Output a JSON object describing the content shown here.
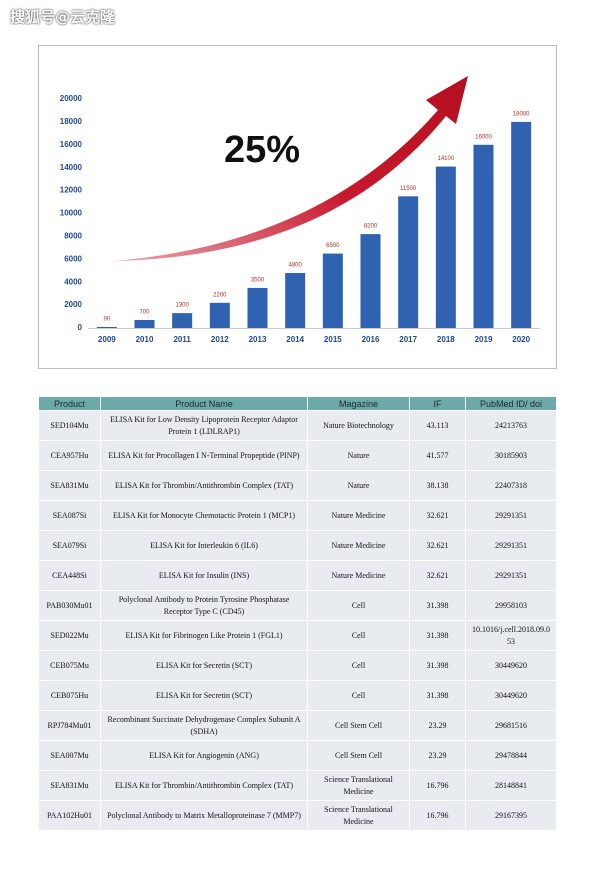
{
  "watermark": "搜狐号@云克隆",
  "chart_data": {
    "type": "bar",
    "annotation": "25%",
    "categories": [
      "2009",
      "2010",
      "2011",
      "2012",
      "2013",
      "2014",
      "2015",
      "2016",
      "2017",
      "2018",
      "2019",
      "2020"
    ],
    "values": [
      90,
      700,
      1300,
      2200,
      3500,
      4800,
      6500,
      8200,
      11500,
      14100,
      16000,
      18000
    ],
    "color": "#2f62b0",
    "label_color": "#b03024",
    "ylim": [
      0,
      20000
    ],
    "yticks": [
      0,
      2000,
      4000,
      6000,
      8000,
      10000,
      12000,
      14000,
      16000,
      18000,
      20000
    ]
  },
  "table": {
    "header": [
      "Product",
      "Product Name",
      "Magazine",
      "IF",
      "PubMed ID/ doi"
    ],
    "rows": [
      [
        "SED104Mu",
        "ELISA Kit for Low Density Lipoprotein Receptor Adaptor Protein 1 (LDLRAP1)",
        "Nature Biotechnology",
        43.113,
        "24213763"
      ],
      [
        "CEA957Hu",
        "ELISA Kit for Procollagen I N-Terminal Propeptide (PINP)",
        "Nature",
        41.577,
        "30185903"
      ],
      [
        "SEA831Mu",
        "ELISA Kit for Thrombin/Antithrombin Complex (TAT)",
        "Nature",
        38.138,
        "22407318"
      ],
      [
        "SEA087Si",
        "ELISA Kit for Monocyte Chemotactic Protein 1 (MCP1)",
        "Nature Medicine",
        32.621,
        "29291351"
      ],
      [
        "SEA079Si",
        "ELISA Kit for Interleukin 6 (IL6)",
        "Nature Medicine",
        32.621,
        "29291351"
      ],
      [
        "CEA448Si",
        "ELISA Kit for Insulin (INS)",
        "Nature Medicine",
        32.621,
        "29291351"
      ],
      [
        "PAB030Mu01",
        "Polyclonal Antibody to Protein Tyrosine Phosphatase Receptor Type C (CD45)",
        "Cell",
        31.398,
        "29958103"
      ],
      [
        "SED022Mu",
        "ELISA Kit for Fibrinogen Like Protein 1 (FGL1)",
        "Cell",
        31.398,
        "10.1016/j.cell.2018.09.053"
      ],
      [
        "CEB075Mu",
        "ELISA Kit for Secretin (SCT)",
        "Cell",
        31.398,
        "30449620"
      ],
      [
        "CEB075Hu",
        "ELISA Kit for Secretin (SCT)",
        "Cell",
        31.398,
        "30449620"
      ],
      [
        "RPJ784Mu01",
        "Recombinant Succinate Dehydrogenase Complex Subunit A (SDHA)",
        "Cell Stem Cell",
        23.29,
        "29681516"
      ],
      [
        "SEA007Mu",
        "ELISA Kit for Angiogenin (ANG)",
        "Cell Stem Cell",
        23.29,
        "29478844"
      ],
      [
        "SEA831Mu",
        "ELISA Kit for Thrombin/Antithrombin Complex (TAT)",
        "Science Translational Medicine",
        16.796,
        "28148841"
      ],
      [
        "PAA102Hu01",
        "Polyclonal Antibody to Matrix Metalloproteinase 7 (MMP7)",
        "Science Translational Medicine",
        16.796,
        "29167395"
      ]
    ]
  }
}
